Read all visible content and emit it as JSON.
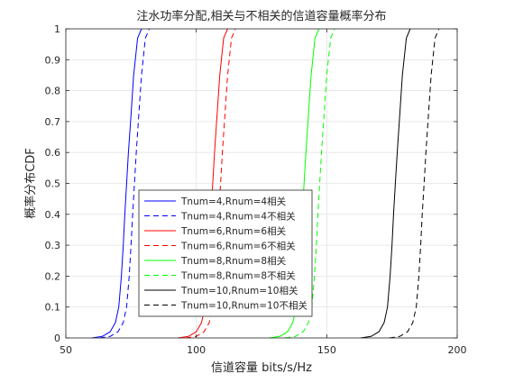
{
  "chart_data": {
    "type": "line",
    "title": "注水功率分配,相关与不相关的信道容量概率分布",
    "xlabel": "信道容量 bits/s/Hz",
    "ylabel": "概率分布CDF",
    "xlim": [
      50,
      200
    ],
    "ylim": [
      0,
      1
    ],
    "xticks": [
      50,
      100,
      150,
      200
    ],
    "yticks": [
      0,
      0.1,
      0.2,
      0.3,
      0.4,
      0.5,
      0.6,
      0.7,
      0.8,
      0.9,
      1
    ],
    "xtick_labels": [
      "50",
      "100",
      "150",
      "200"
    ],
    "ytick_labels": [
      "0",
      "0.1",
      "0.2",
      "0.3",
      "0.4",
      "0.5",
      "0.6",
      "0.7",
      "0.8",
      "0.9",
      "1"
    ],
    "grid": true,
    "legend_position": "lower-center",
    "series": [
      {
        "name": "Tnum=4,Rnum=4相关",
        "color": "#0000ff",
        "dash": "solid",
        "x": [
          60.0,
          64.0,
          67.0,
          69.0,
          70.3,
          71.3,
          72.0,
          72.6,
          73.3,
          74.0,
          74.8,
          76.0,
          77.5,
          79.0
        ],
        "y": [
          0,
          0.005,
          0.02,
          0.05,
          0.1,
          0.2,
          0.3,
          0.4,
          0.5,
          0.6,
          0.7,
          0.85,
          0.97,
          1.0
        ]
      },
      {
        "name": "Tnum=4,Rnum=4不相关",
        "color": "#0000ff",
        "dash": "dashed",
        "x": [
          63.0,
          67.0,
          70.0,
          72.0,
          73.3,
          74.3,
          75.0,
          75.6,
          76.3,
          77.0,
          77.8,
          79.0,
          80.5,
          82.0
        ],
        "y": [
          0,
          0.005,
          0.02,
          0.05,
          0.1,
          0.2,
          0.3,
          0.4,
          0.5,
          0.6,
          0.7,
          0.85,
          0.97,
          1.0
        ]
      },
      {
        "name": "Tnum=6,Rnum=6相关",
        "color": "#ff0000",
        "dash": "solid",
        "x": [
          93.0,
          97.0,
          100.0,
          102.0,
          103.3,
          104.3,
          105.0,
          105.6,
          106.3,
          107.0,
          107.8,
          109.0,
          110.5,
          112.0
        ],
        "y": [
          0,
          0.005,
          0.02,
          0.05,
          0.1,
          0.2,
          0.3,
          0.4,
          0.5,
          0.6,
          0.7,
          0.85,
          0.97,
          1.0
        ]
      },
      {
        "name": "Tnum=6,Rnum=6不相关",
        "color": "#ff0000",
        "dash": "dashed",
        "x": [
          96.0,
          100.0,
          103.0,
          105.0,
          106.3,
          107.3,
          108.0,
          108.6,
          109.3,
          110.0,
          110.8,
          112.0,
          113.5,
          115.0
        ],
        "y": [
          0,
          0.005,
          0.02,
          0.05,
          0.1,
          0.2,
          0.3,
          0.4,
          0.5,
          0.6,
          0.7,
          0.85,
          0.97,
          1.0
        ]
      },
      {
        "name": "Tnum=8,Rnum=8相关",
        "color": "#00ff00",
        "dash": "solid",
        "x": [
          128.0,
          132.0,
          135.0,
          137.0,
          138.3,
          139.3,
          140.0,
          140.6,
          141.3,
          142.0,
          142.8,
          144.0,
          145.5,
          147.0
        ],
        "y": [
          0,
          0.005,
          0.02,
          0.05,
          0.1,
          0.2,
          0.3,
          0.4,
          0.5,
          0.6,
          0.7,
          0.85,
          0.97,
          1.0
        ]
      },
      {
        "name": "Tnum=8,Rnum=8不相关",
        "color": "#00ff00",
        "dash": "dashed",
        "x": [
          134.0,
          138.0,
          141.0,
          143.0,
          144.3,
          145.3,
          146.0,
          146.6,
          147.3,
          148.0,
          148.8,
          150.0,
          151.5,
          153.0
        ],
        "y": [
          0,
          0.005,
          0.02,
          0.05,
          0.1,
          0.2,
          0.3,
          0.4,
          0.5,
          0.6,
          0.7,
          0.85,
          0.97,
          1.0
        ]
      },
      {
        "name": "Tnum=10,Rnum=10相关",
        "color": "#000000",
        "dash": "solid",
        "x": [
          163.0,
          167.0,
          170.0,
          172.0,
          173.3,
          174.3,
          175.0,
          175.6,
          176.3,
          177.0,
          177.8,
          179.0,
          180.5,
          182.0
        ],
        "y": [
          0,
          0.005,
          0.02,
          0.05,
          0.1,
          0.2,
          0.3,
          0.4,
          0.5,
          0.6,
          0.7,
          0.85,
          0.97,
          1.0
        ]
      },
      {
        "name": "Tnum=10,Rnum=10不相关",
        "color": "#000000",
        "dash": "dashed",
        "x": [
          174.0,
          178.0,
          181.0,
          183.0,
          184.3,
          185.3,
          186.0,
          186.6,
          187.3,
          188.0,
          188.8,
          190.0,
          191.5,
          193.0
        ],
        "y": [
          0,
          0.005,
          0.02,
          0.05,
          0.1,
          0.2,
          0.3,
          0.4,
          0.5,
          0.6,
          0.7,
          0.85,
          0.97,
          1.0
        ]
      }
    ]
  }
}
